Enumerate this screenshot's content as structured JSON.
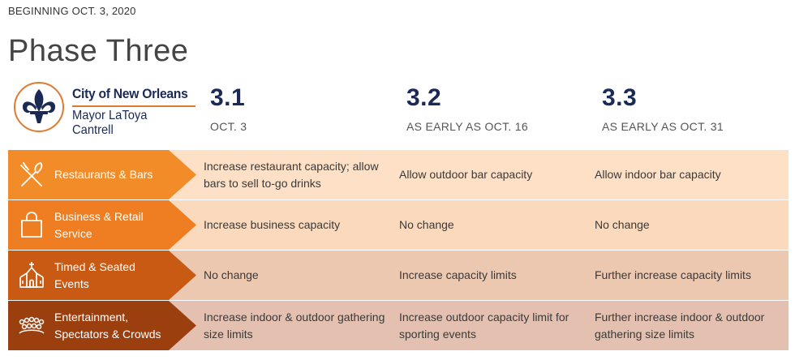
{
  "header": {
    "kicker": "BEGINNING OCT. 3, 2020",
    "title": "Phase Three"
  },
  "logo": {
    "line1": "City of New Orleans",
    "line2": "Mayor LaToya Cantrell"
  },
  "phases": [
    {
      "number": "3.1",
      "date": "OCT. 3"
    },
    {
      "number": "3.2",
      "date": "AS EARLY AS OCT. 16"
    },
    {
      "number": "3.3",
      "date": "AS EARLY AS OCT. 31"
    }
  ],
  "rows": [
    {
      "label": "Restaurants & Bars",
      "icon": "fork-knife-icon",
      "label_color": "#f28c28",
      "bg_color": "#fde0c6",
      "cells": [
        "Increase restaurant capacity; allow bars to sell to-go drinks",
        "Allow outdoor bar capacity",
        "Allow indoor bar capacity"
      ]
    },
    {
      "label": "Business & Retail Service",
      "icon": "shopping-bag-icon",
      "label_color": "#ef7e22",
      "bg_color": "#fbd9bd",
      "cells": [
        "Increase business capacity",
        "No change",
        "No change"
      ]
    },
    {
      "label": "Timed & Seated Events",
      "icon": "church-icon",
      "label_color": "#c85a13",
      "bg_color": "#ecc8b1",
      "cells": [
        "No change",
        "Increase capacity limits",
        "Further increase capacity limits"
      ]
    },
    {
      "label": "Entertainment, Spectators & Crowds",
      "icon": "crowd-icon",
      "label_color": "#9c3f0f",
      "bg_color": "#e3c0b0",
      "cells": [
        "Increase indoor & outdoor gathering size limits",
        "Increase outdoor capacity limit for sporting events",
        "Further increase indoor & outdoor gathering size limits"
      ]
    }
  ]
}
